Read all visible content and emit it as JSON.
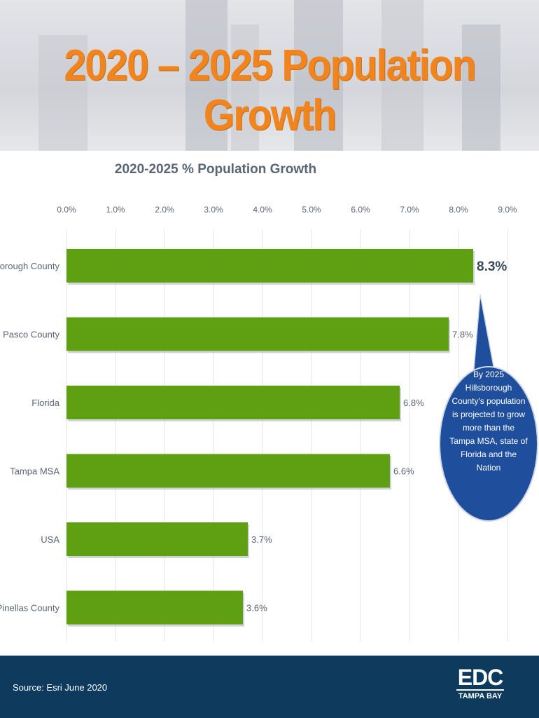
{
  "header": {
    "title": "2020 – 2025 Population Growth"
  },
  "chart_data": {
    "type": "bar",
    "orientation": "horizontal",
    "title": "2020-2025 % Population Growth",
    "categories": [
      "Hillsborough County",
      "Pasco County",
      "Florida",
      "Tampa MSA",
      "USA",
      "Pinellas County"
    ],
    "values": [
      8.3,
      7.8,
      6.8,
      6.6,
      3.7,
      3.6
    ],
    "data_labels": [
      "8.3%",
      "7.8%",
      "6.8%",
      "6.6%",
      "3.7%",
      "3.6%"
    ],
    "xlim": [
      0,
      9
    ],
    "ticks": [
      0,
      1,
      2,
      3,
      4,
      5,
      6,
      7,
      8,
      9
    ],
    "tick_labels": [
      "0.0%",
      "1.0%",
      "2.0%",
      "3.0%",
      "4.0%",
      "5.0%",
      "6.0%",
      "7.0%",
      "8.0%",
      "9.0%"
    ],
    "axis_position": "top",
    "grid": true,
    "bar_color": "#5fa012",
    "highlight_label_color": "#3a4a5a"
  },
  "callout": {
    "lines": [
      "By 2025",
      "Hillsborough",
      "County's population",
      "is projected to grow",
      "more than the",
      "Tampa MSA, state of",
      "Florida and the",
      "Nation"
    ],
    "color": "#1f4e9c"
  },
  "footer": {
    "source": "Source:  Esri June 2020"
  },
  "logo": {
    "mark": "EDC",
    "sub": "TAMPA BAY"
  }
}
